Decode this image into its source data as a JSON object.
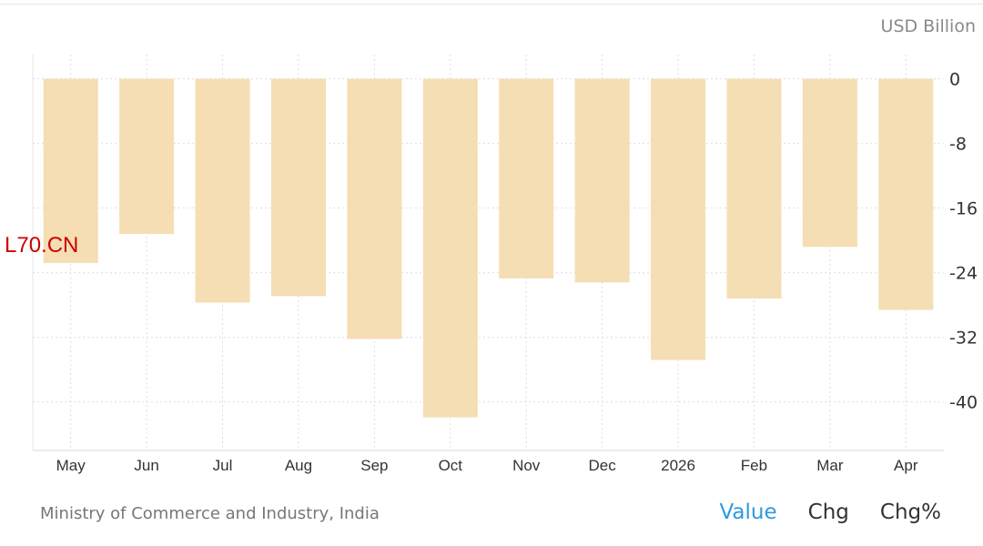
{
  "unit_label": "USD Billion",
  "watermark": "L70.CN",
  "source": "Ministry of Commerce and Industry, India",
  "tabs": [
    {
      "label": "Value",
      "active": true
    },
    {
      "label": "Chg",
      "active": false
    },
    {
      "label": "Chg%",
      "active": false
    }
  ],
  "colors": {
    "bar": "#f5deb3",
    "grid": "#dedede",
    "axis_text": "#333333",
    "active_tab": "#2c9be0"
  },
  "chart_data": {
    "type": "bar",
    "categories": [
      "May",
      "Jun",
      "Jul",
      "Aug",
      "Sep",
      "Oct",
      "Nov",
      "Dec",
      "2026",
      "Feb",
      "Mar",
      "Apr"
    ],
    "values": [
      -22.8,
      -19.2,
      -27.7,
      -26.9,
      -32.2,
      -41.9,
      -24.7,
      -25.2,
      -34.8,
      -27.2,
      -20.8,
      -28.6
    ],
    "ylim": [
      -46,
      3
    ],
    "yticks": [
      0,
      -8,
      -16,
      -24,
      -32,
      -40
    ],
    "ytick_labels": [
      "0",
      "-8",
      "-16",
      "-24",
      "-32",
      "-40"
    ],
    "y_axis_position": "right",
    "grid": true,
    "title": "",
    "xlabel": "",
    "ylabel": "USD Billion"
  }
}
